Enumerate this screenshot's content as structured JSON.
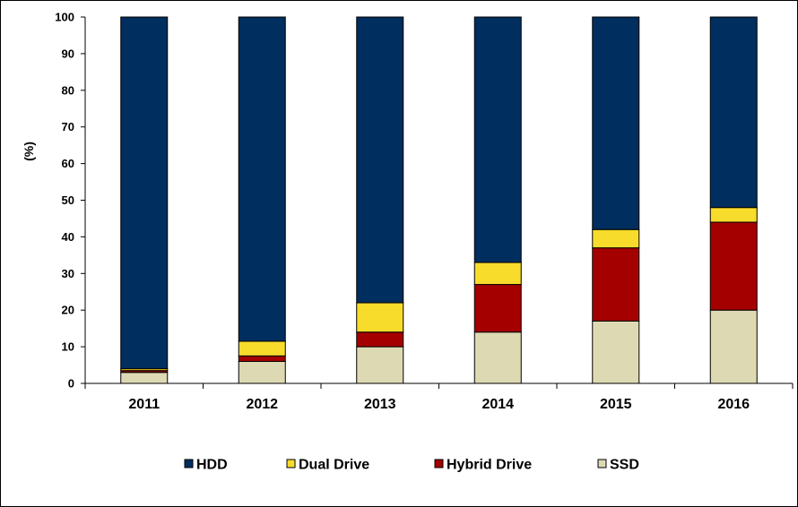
{
  "chart_data": {
    "type": "bar",
    "stacked": true,
    "title": "",
    "xlabel": "",
    "ylabel": "(%)",
    "ylim": [
      0,
      100
    ],
    "yticks": [
      0,
      10,
      20,
      30,
      40,
      50,
      60,
      70,
      80,
      90,
      100
    ],
    "categories": [
      "2011",
      "2012",
      "2013",
      "2014",
      "2015",
      "2016"
    ],
    "series": [
      {
        "name": "SSD",
        "color": "#ddd9b3",
        "values": [
          3,
          6,
          10,
          14,
          17,
          20
        ]
      },
      {
        "name": "Hybrid Drive",
        "color": "#a50000",
        "values": [
          0.5,
          1.5,
          4,
          13,
          20,
          24
        ]
      },
      {
        "name": "Dual Drive",
        "color": "#f8dc2b",
        "values": [
          0.5,
          4,
          8,
          6,
          5,
          4
        ]
      },
      {
        "name": "HDD",
        "color": "#002e5e",
        "values": [
          96,
          88.5,
          78,
          67,
          58,
          52
        ]
      }
    ],
    "legend": {
      "position": "bottom",
      "order": [
        "HDD",
        "Dual Drive",
        "Hybrid Drive",
        "SSD"
      ]
    },
    "grid": false
  }
}
